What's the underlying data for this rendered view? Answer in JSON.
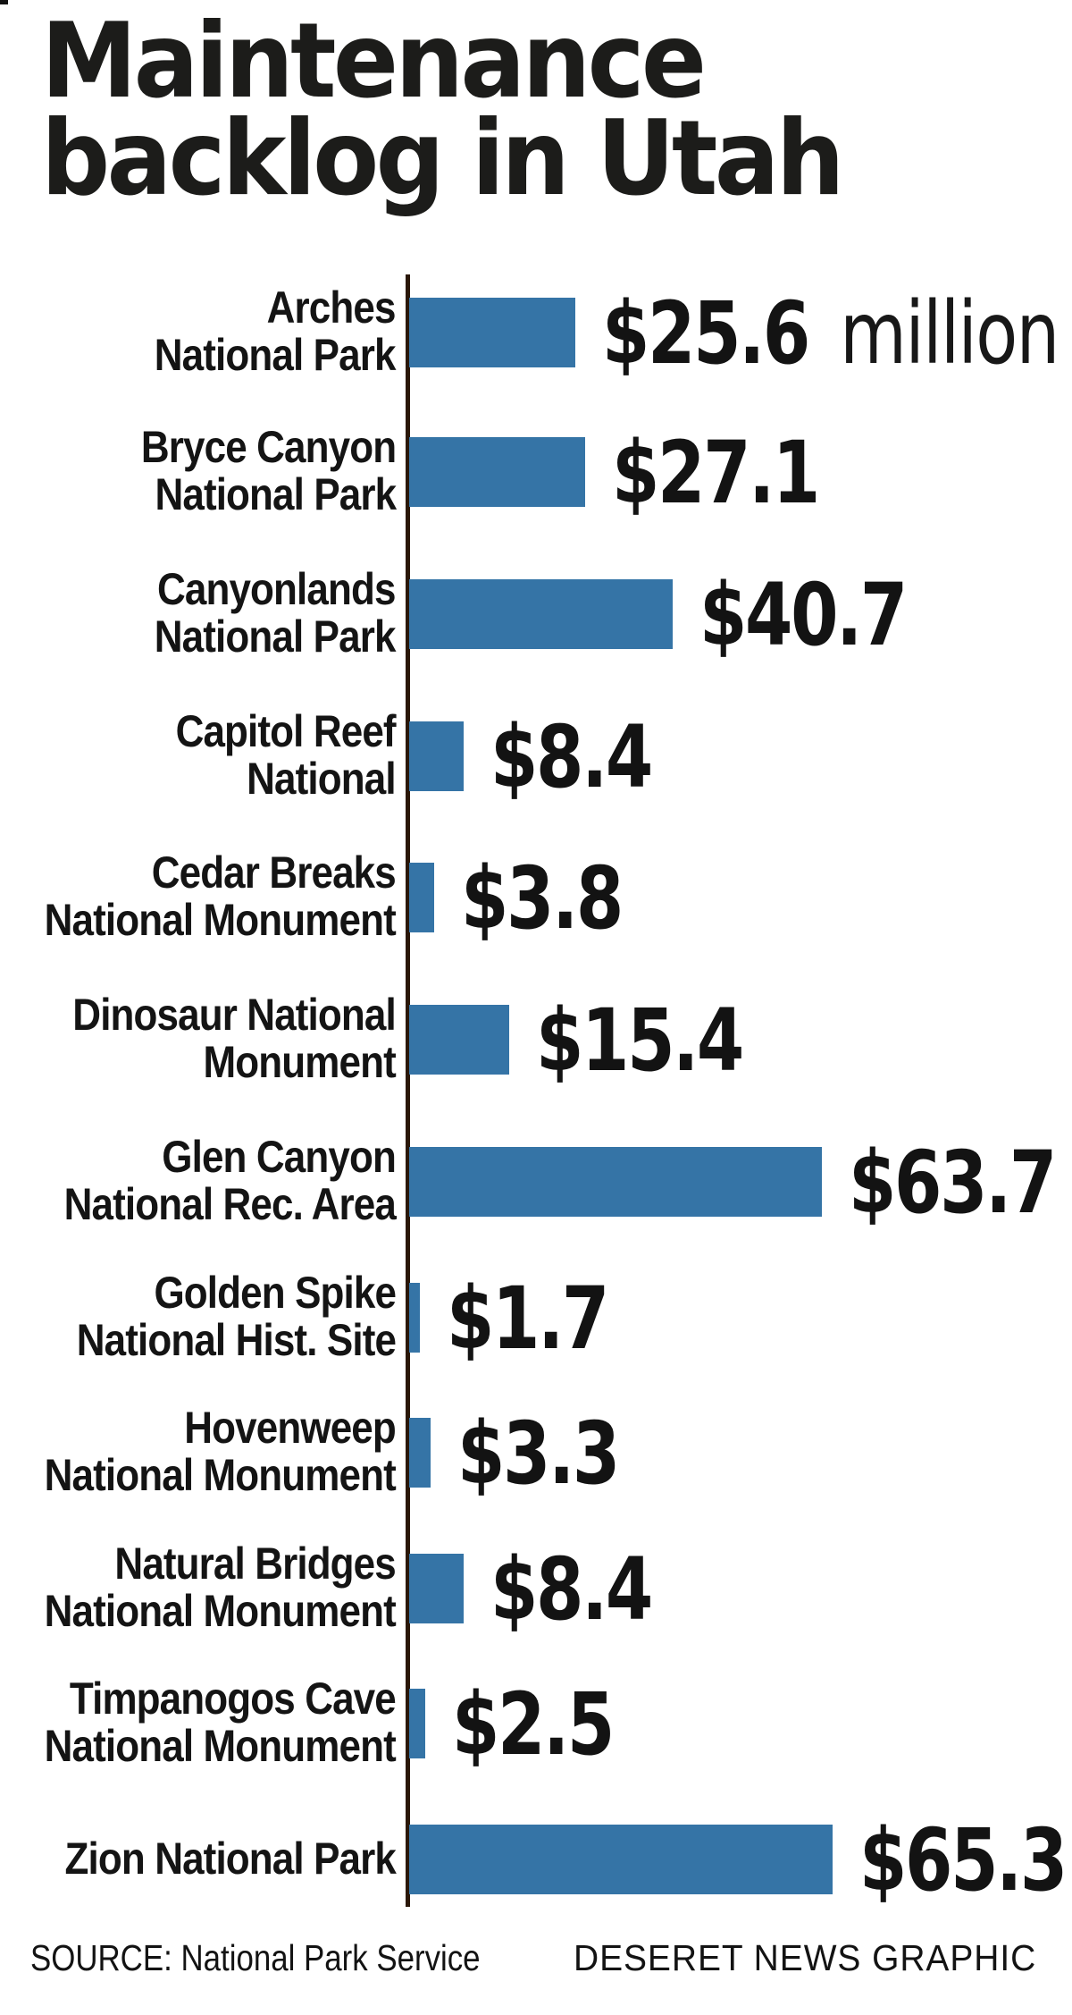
{
  "title": {
    "line1": "Maintenance",
    "line2": "backlog in Utah"
  },
  "chart_data": {
    "type": "bar",
    "orientation": "horizontal",
    "title": "Maintenance backlog in Utah",
    "unit": "million US dollars",
    "categories": [
      "Arches National Park",
      "Bryce Canyon National Park",
      "Canyonlands National Park",
      "Capitol Reef National",
      "Cedar Breaks National Monument",
      "Dinosaur National Monument",
      "Glen Canyon National Rec. Area",
      "Golden Spike National Hist. Site",
      "Hovenweep National Monument",
      "Natural Bridges National Monument",
      "Timpanogos Cave National Monument",
      "Zion National Park"
    ],
    "category_lines": [
      [
        "Arches",
        "National Park"
      ],
      [
        "Bryce Canyon",
        "National Park"
      ],
      [
        "Canyonlands",
        "National Park"
      ],
      [
        "Capitol Reef",
        "National"
      ],
      [
        "Cedar Breaks",
        "National Monument"
      ],
      [
        "Dinosaur National",
        "Monument"
      ],
      [
        "Glen Canyon",
        "National Rec. Area"
      ],
      [
        "Golden Spike",
        "National Hist. Site"
      ],
      [
        "Hovenweep",
        "National Monument"
      ],
      [
        "Natural Bridges",
        "National Monument"
      ],
      [
        "Timpanogos Cave",
        "National Monument"
      ],
      [
        "Zion National Park"
      ]
    ],
    "values": [
      25.6,
      27.1,
      40.7,
      8.4,
      3.8,
      15.4,
      63.7,
      1.7,
      3.3,
      8.4,
      2.5,
      65.3
    ],
    "value_labels": [
      "$25.6",
      "$27.1",
      "$40.7",
      "$8.4",
      "$3.8",
      "$15.4",
      "$63.7",
      "$1.7",
      "$3.3",
      "$8.4",
      "$2.5",
      "$65.3"
    ],
    "first_value_suffix": "million",
    "xlim": [
      0,
      66
    ],
    "grid": false,
    "legend": "none",
    "bar_color": "#3574A6",
    "axis_color": "#2A1708",
    "text_color": "#141414"
  },
  "footer": {
    "source": "SOURCE: National Park Service",
    "credit": "DESERET NEWS GRAPHIC"
  }
}
